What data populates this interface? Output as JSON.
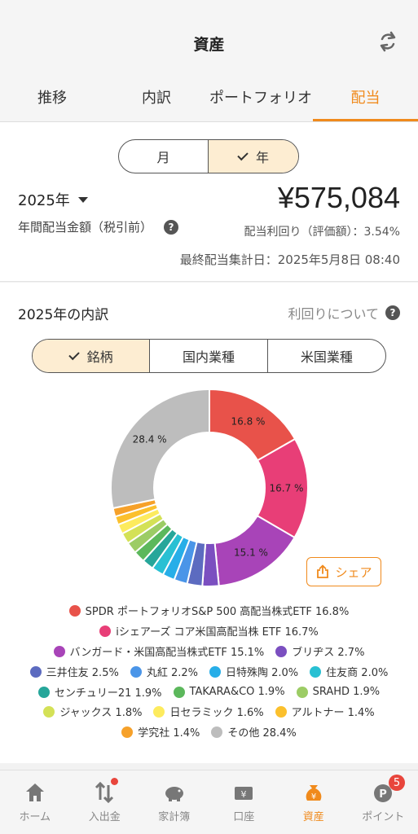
{
  "header": {
    "title": "資産",
    "tabs": [
      "推移",
      "内訳",
      "ポートフォリオ",
      "配当"
    ],
    "active_tab": 3
  },
  "period_toggle": {
    "options": [
      "月",
      "年"
    ],
    "selected": 1
  },
  "summary": {
    "year": "2025年",
    "label": "年間配当金額（税引前）",
    "amount": "¥575,084",
    "yield_text": "配当利回り（評価額）：3.54%",
    "last_date_text": "最終配当集計日：2025年5月8日 08:40"
  },
  "breakdown": {
    "title": "2025年の内訳",
    "about_link": "利回りについて",
    "segments": [
      "銘柄",
      "国内業種",
      "米国業種"
    ],
    "selected": 0,
    "share_label": "シェア"
  },
  "chart_data": {
    "type": "pie",
    "donut": true,
    "slices": [
      {
        "label": "SPDR ポートフォリオS&P 500 高配当株式ETF 16.8%",
        "value": 16.8,
        "color": "#e8524a",
        "show": "16.8 %"
      },
      {
        "label": "iシェアーズ コア米国高配当株 ETF 16.7%",
        "value": 16.7,
        "color": "#e83e77",
        "show": "16.7 %"
      },
      {
        "label": "バンガード・米国高配当株式ETF 15.1%",
        "value": 15.1,
        "color": "#a844b8",
        "show": "15.1 %"
      },
      {
        "label": "ブリヂス 2.7%",
        "value": 2.7,
        "color": "#7b4fc0",
        "show": ""
      },
      {
        "label": "三井住友 2.5%",
        "value": 2.5,
        "color": "#5c6bc0",
        "show": ""
      },
      {
        "label": "丸紅 2.2%",
        "value": 2.2,
        "color": "#4a95e8",
        "show": ""
      },
      {
        "label": "日特殊陶 2.0%",
        "value": 2.0,
        "color": "#27aee8",
        "show": ""
      },
      {
        "label": "住友商 2.0%",
        "value": 2.0,
        "color": "#28c0d3",
        "show": ""
      },
      {
        "label": "センチュリー21 1.9%",
        "value": 1.9,
        "color": "#26a69a",
        "show": ""
      },
      {
        "label": "TAKARA&CO 1.9%",
        "value": 1.9,
        "color": "#5cb85c",
        "show": ""
      },
      {
        "label": "SRAHD 1.9%",
        "value": 1.9,
        "color": "#9ccc65",
        "show": ""
      },
      {
        "label": "ジャックス 1.8%",
        "value": 1.8,
        "color": "#d4e157",
        "show": ""
      },
      {
        "label": "日セラミック 1.6%",
        "value": 1.6,
        "color": "#fdeb5e",
        "show": ""
      },
      {
        "label": "アルトナー 1.4%",
        "value": 1.4,
        "color": "#fbc02d",
        "show": ""
      },
      {
        "label": "学究社 1.4%",
        "value": 1.4,
        "color": "#f6a12a",
        "show": ""
      },
      {
        "label": "その他 28.4%",
        "value": 28.4,
        "color": "#bdbdbd",
        "show": "28.4 %"
      }
    ]
  },
  "tabbar": {
    "items": [
      "ホーム",
      "入出金",
      "家計簿",
      "口座",
      "資産",
      "ポイント"
    ],
    "active": 4,
    "points_badge": "5"
  },
  "colors": {
    "accent": "#f08a1c",
    "alert": "#e8453c"
  }
}
